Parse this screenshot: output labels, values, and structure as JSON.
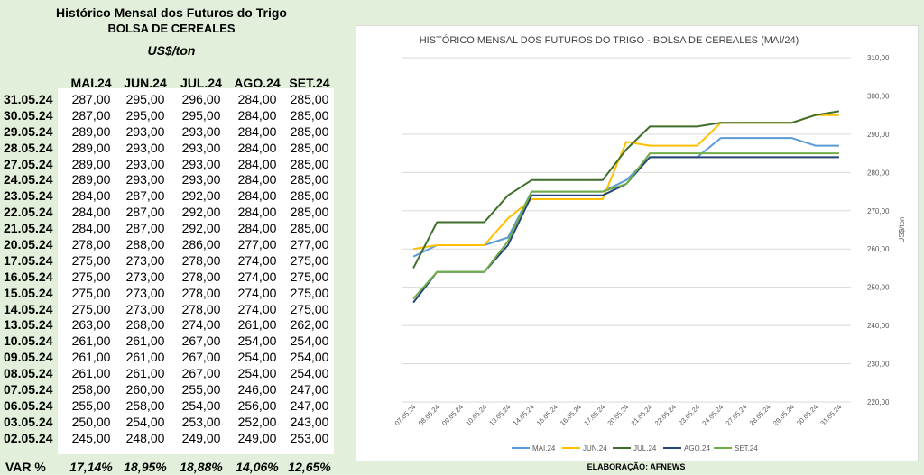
{
  "header": {
    "title1": "Histórico Mensal dos Futuros do Trigo",
    "title2": "BOLSA DE CEREALES",
    "units": "US$/ton"
  },
  "table": {
    "columns": [
      "MAI.24",
      "JUN.24",
      "JUL.24",
      "AGO.24",
      "SET.24"
    ],
    "rows": [
      {
        "date": "31.05.24",
        "values": [
          "287,00",
          "295,00",
          "296,00",
          "284,00",
          "285,00"
        ]
      },
      {
        "date": "30.05.24",
        "values": [
          "287,00",
          "295,00",
          "295,00",
          "284,00",
          "285,00"
        ]
      },
      {
        "date": "29.05.24",
        "values": [
          "289,00",
          "293,00",
          "293,00",
          "284,00",
          "285,00"
        ]
      },
      {
        "date": "28.05.24",
        "values": [
          "289,00",
          "293,00",
          "293,00",
          "284,00",
          "285,00"
        ]
      },
      {
        "date": "27.05.24",
        "values": [
          "289,00",
          "293,00",
          "293,00",
          "284,00",
          "285,00"
        ]
      },
      {
        "date": "24.05.24",
        "values": [
          "289,00",
          "293,00",
          "293,00",
          "284,00",
          "285,00"
        ]
      },
      {
        "date": "23.05.24",
        "values": [
          "284,00",
          "287,00",
          "292,00",
          "284,00",
          "285,00"
        ]
      },
      {
        "date": "22.05.24",
        "values": [
          "284,00",
          "287,00",
          "292,00",
          "284,00",
          "285,00"
        ]
      },
      {
        "date": "21.05.24",
        "values": [
          "284,00",
          "287,00",
          "292,00",
          "284,00",
          "285,00"
        ]
      },
      {
        "date": "20.05.24",
        "values": [
          "278,00",
          "288,00",
          "286,00",
          "277,00",
          "277,00"
        ]
      },
      {
        "date": "17.05.24",
        "values": [
          "275,00",
          "273,00",
          "278,00",
          "274,00",
          "275,00"
        ]
      },
      {
        "date": "16.05.24",
        "values": [
          "275,00",
          "273,00",
          "278,00",
          "274,00",
          "275,00"
        ]
      },
      {
        "date": "15.05.24",
        "values": [
          "275,00",
          "273,00",
          "278,00",
          "274,00",
          "275,00"
        ]
      },
      {
        "date": "14.05.24",
        "values": [
          "275,00",
          "273,00",
          "278,00",
          "274,00",
          "275,00"
        ]
      },
      {
        "date": "13.05.24",
        "values": [
          "263,00",
          "268,00",
          "274,00",
          "261,00",
          "262,00"
        ]
      },
      {
        "date": "10.05.24",
        "values": [
          "261,00",
          "261,00",
          "267,00",
          "254,00",
          "254,00"
        ]
      },
      {
        "date": "09.05.24",
        "values": [
          "261,00",
          "261,00",
          "267,00",
          "254,00",
          "254,00"
        ]
      },
      {
        "date": "08.05.24",
        "values": [
          "261,00",
          "261,00",
          "267,00",
          "254,00",
          "254,00"
        ]
      },
      {
        "date": "07.05.24",
        "values": [
          "258,00",
          "260,00",
          "255,00",
          "246,00",
          "247,00"
        ]
      },
      {
        "date": "06.05.24",
        "values": [
          "255,00",
          "258,00",
          "254,00",
          "256,00",
          "247,00"
        ]
      },
      {
        "date": "03.05.24",
        "values": [
          "250,00",
          "254,00",
          "253,00",
          "252,00",
          "243,00"
        ]
      },
      {
        "date": "02.05.24",
        "values": [
          "245,00",
          "248,00",
          "249,00",
          "249,00",
          "253,00"
        ]
      }
    ],
    "var_label": "VAR %",
    "var_values": [
      "17,14%",
      "18,95%",
      "18,88%",
      "14,06%",
      "12,65%"
    ]
  },
  "credit": "ELABORAÇÃO: AFNEWS",
  "chart_data": {
    "type": "line",
    "title": "HISTÓRICO MENSAL DOS FUTUROS DO TRIGO - BOLSA DE CEREALES (MAI/24)",
    "ylabel": "US$/ton",
    "ylim": [
      220,
      310
    ],
    "ytick_step": 10,
    "ytick_labels": [
      "220,00",
      "230,00",
      "240,00",
      "250,00",
      "260,00",
      "270,00",
      "280,00",
      "290,00",
      "300,00",
      "310,00"
    ],
    "y_axis_side": "right",
    "grid": true,
    "legend_position": "bottom",
    "categories": [
      "07.05.24",
      "08.05.24",
      "09.05.24",
      "10.05.24",
      "13.05.24",
      "14.05.24",
      "15.05.24",
      "16.05.24",
      "17.05.24",
      "20.05.24",
      "21.05.24",
      "22.05.24",
      "23.05.24",
      "24.05.24",
      "27.05.24",
      "28.05.24",
      "29.05.24",
      "30.05.24",
      "31.05.24"
    ],
    "series": [
      {
        "name": "MAI.24",
        "color": "#5b9bd5",
        "values": [
          258,
          261,
          261,
          261,
          263,
          275,
          275,
          275,
          275,
          278,
          284,
          284,
          284,
          289,
          289,
          289,
          289,
          287,
          287
        ]
      },
      {
        "name": "JUN.24",
        "color": "#ffc000",
        "values": [
          260,
          261,
          261,
          261,
          268,
          273,
          273,
          273,
          273,
          288,
          287,
          287,
          287,
          293,
          293,
          293,
          293,
          295,
          295
        ]
      },
      {
        "name": "JUL.24",
        "color": "#3f6f2b",
        "values": [
          255,
          267,
          267,
          267,
          274,
          278,
          278,
          278,
          278,
          286,
          292,
          292,
          292,
          293,
          293,
          293,
          293,
          295,
          296
        ]
      },
      {
        "name": "AGO.24",
        "color": "#264478",
        "values": [
          246,
          254,
          254,
          254,
          261,
          274,
          274,
          274,
          274,
          277,
          284,
          284,
          284,
          284,
          284,
          284,
          284,
          284,
          284
        ]
      },
      {
        "name": "SET.24",
        "color": "#70ad47",
        "values": [
          247,
          254,
          254,
          254,
          262,
          275,
          275,
          275,
          275,
          277,
          285,
          285,
          285,
          285,
          285,
          285,
          285,
          285,
          285
        ]
      }
    ]
  }
}
